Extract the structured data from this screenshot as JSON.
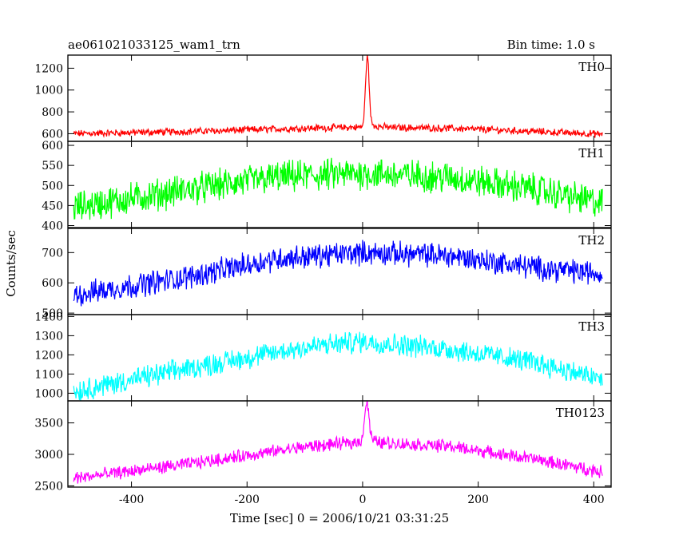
{
  "chart_data": {
    "type": "line",
    "title_left": "ae061021033125_wam1_trn",
    "title_right": "Bin time: 1.0 s",
    "xlabel": "Time [sec] 0 = 2006/10/21 03:31:25",
    "ylabel": "Counts/sec",
    "xlim": [
      -510,
      430
    ],
    "x_ticks": [
      -400,
      -200,
      0,
      200,
      400
    ],
    "x_range_of_data": [
      -500,
      415
    ],
    "panels": [
      {
        "name": "TH0",
        "color": "#ff0000",
        "ylim": [
          530,
          1320
        ],
        "y_ticks": [
          600,
          800,
          1000,
          1200
        ],
        "baseline": [
          [
            -500,
            600
          ],
          [
            -300,
            620
          ],
          [
            -100,
            650
          ],
          [
            0,
            660
          ],
          [
            150,
            650
          ],
          [
            300,
            620
          ],
          [
            415,
            595
          ]
        ],
        "noise": 45,
        "peak": {
          "x": 8,
          "value": 1300,
          "width": 3
        }
      },
      {
        "name": "TH1",
        "color": "#00ff00",
        "ylim": [
          395,
          610
        ],
        "y_ticks": [
          400,
          450,
          500,
          550,
          600
        ],
        "baseline": [
          [
            -500,
            445
          ],
          [
            -300,
            490
          ],
          [
            -150,
            520
          ],
          [
            0,
            530
          ],
          [
            150,
            520
          ],
          [
            300,
            490
          ],
          [
            415,
            455
          ]
        ],
        "noise": 55
      },
      {
        "name": "TH2",
        "color": "#0000ff",
        "ylim": [
          495,
          780
        ],
        "y_ticks": [
          500,
          600,
          700
        ],
        "baseline": [
          [
            -500,
            560
          ],
          [
            -300,
            620
          ],
          [
            -150,
            680
          ],
          [
            0,
            700
          ],
          [
            150,
            690
          ],
          [
            300,
            650
          ],
          [
            415,
            630
          ]
        ],
        "noise": 55
      },
      {
        "name": "TH3",
        "color": "#00ffff",
        "ylim": [
          960,
          1410
        ],
        "y_ticks": [
          1000,
          1100,
          1200,
          1300,
          1400
        ],
        "baseline": [
          [
            -500,
            1010
          ],
          [
            -300,
            1130
          ],
          [
            -100,
            1240
          ],
          [
            0,
            1270
          ],
          [
            150,
            1230
          ],
          [
            300,
            1160
          ],
          [
            415,
            1070
          ]
        ],
        "noise": 80
      },
      {
        "name": "TH0123",
        "color": "#ff00ff",
        "ylim": [
          2480,
          3850
        ],
        "y_ticks": [
          2500,
          3000,
          3500
        ],
        "baseline": [
          [
            -500,
            2620
          ],
          [
            -300,
            2850
          ],
          [
            -100,
            3120
          ],
          [
            0,
            3200
          ],
          [
            150,
            3130
          ],
          [
            300,
            2920
          ],
          [
            415,
            2720
          ]
        ],
        "noise": 140,
        "peak": {
          "x": 7,
          "value": 3800,
          "width": 4
        }
      }
    ]
  }
}
